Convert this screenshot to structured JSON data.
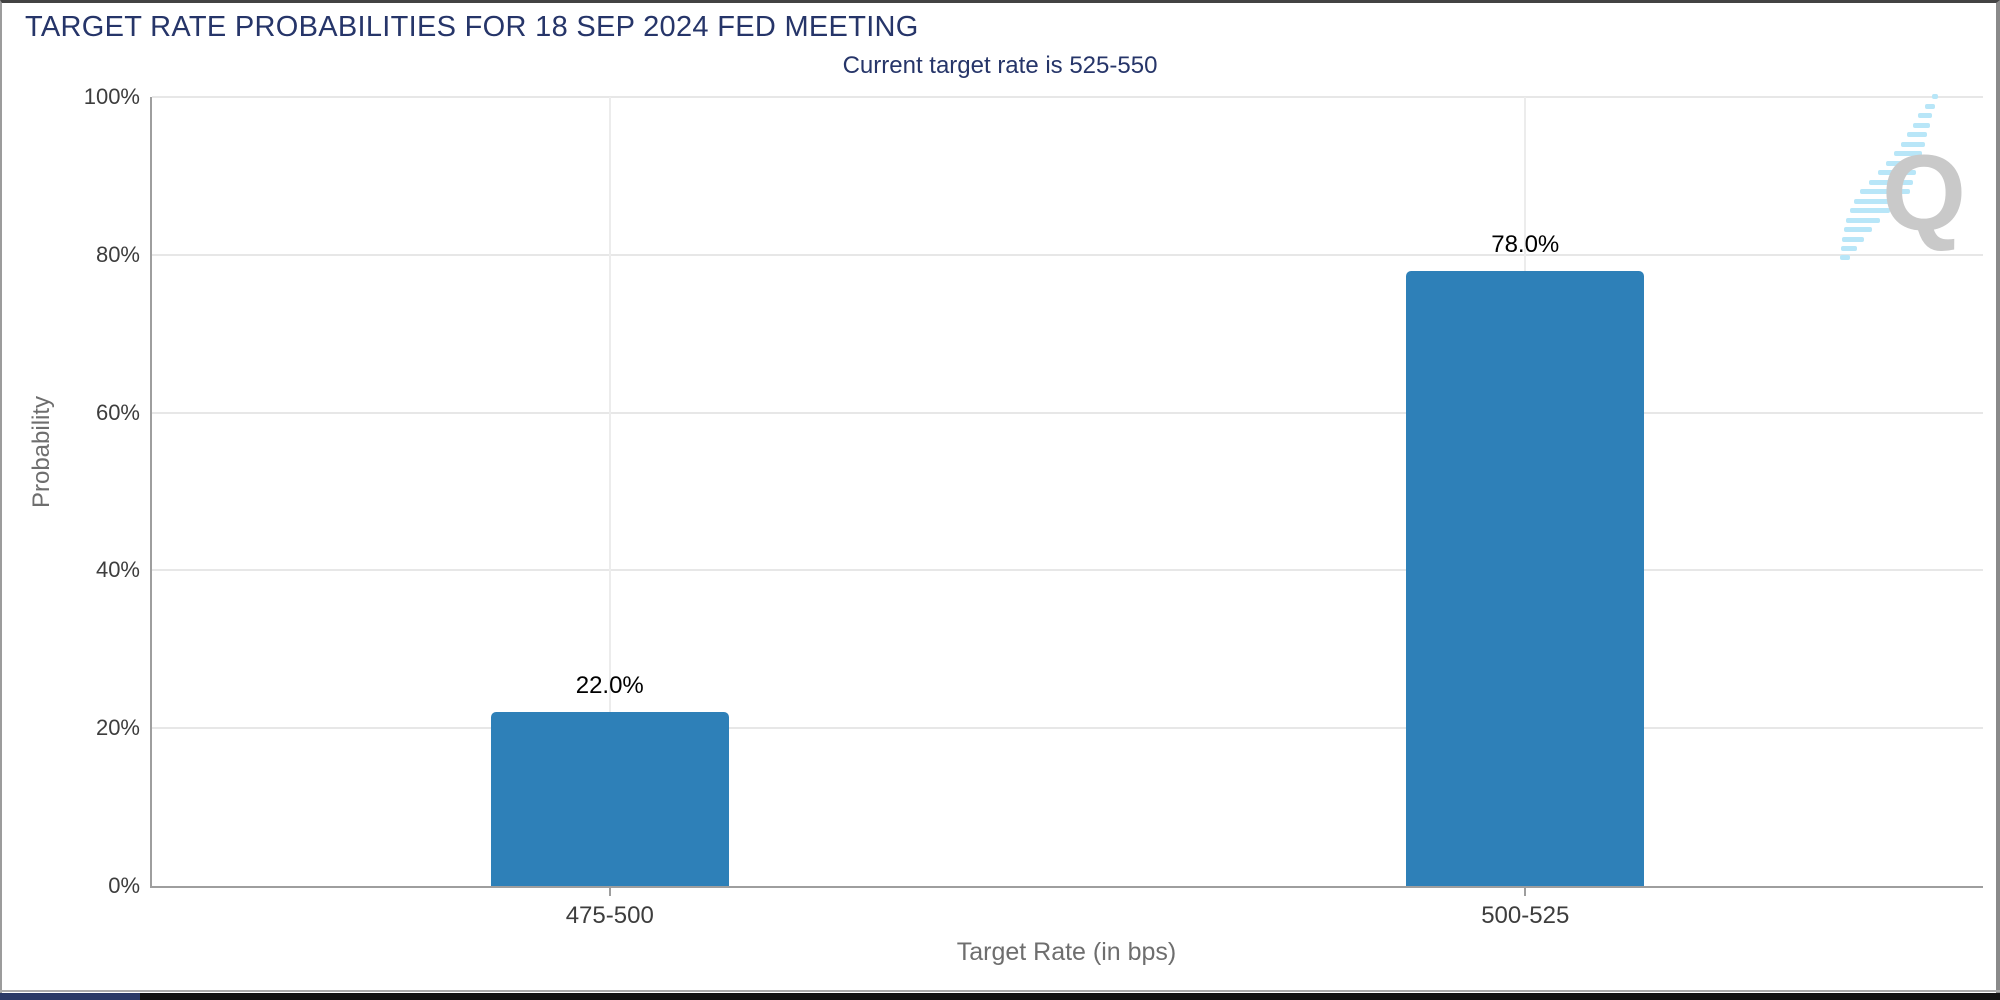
{
  "chart_data": {
    "type": "bar",
    "title": "TARGET RATE PROBABILITIES FOR 18 SEP 2024 FED MEETING",
    "subtitle": "Current target rate is 525-550",
    "categories": [
      "475-500",
      "500-525"
    ],
    "values": [
      22.0,
      78.0
    ],
    "bar_labels": [
      "22.0%",
      "78.0%"
    ],
    "xlabel": "Target Rate (in bps)",
    "ylabel": "Probability",
    "ylim": [
      0,
      100
    ],
    "yticks": [
      0,
      20,
      40,
      60,
      80,
      100
    ],
    "ytick_labels": [
      "0%",
      "20%",
      "40%",
      "60%",
      "80%",
      "100%"
    ],
    "grid": true,
    "legend": "none",
    "bar_color": "#2e80b8"
  },
  "watermark": {
    "icon": "quikstrike-q-logo",
    "letter": "Q",
    "letter_color": "#c9c9c9",
    "swoosh_color": "#b8e6f8"
  },
  "frame_colors": {
    "top_border": "#434343",
    "side_border": "#9c9c9c",
    "bottom_strip": "#121212",
    "bottom_accent_navy": "#2b3a67"
  }
}
